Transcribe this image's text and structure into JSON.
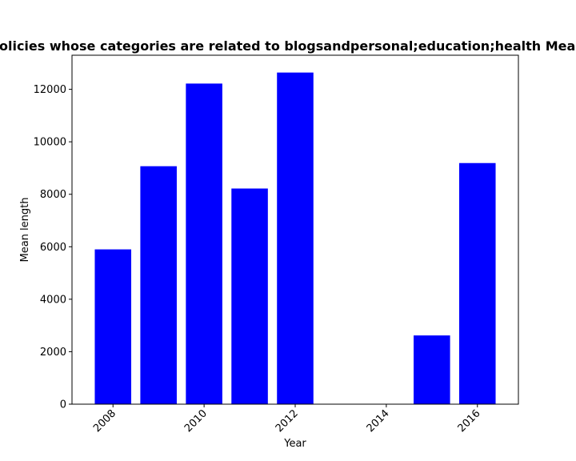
{
  "chart_data": {
    "type": "bar",
    "title": "Mean length in privacy policies whose categories are related to blogsandpersonal;education;health Mean length in privacy policies",
    "xlabel": "Year",
    "ylabel": "Mean length",
    "x": [
      2008,
      2009,
      2010,
      2011,
      2012,
      2015,
      2016
    ],
    "values": [
      5900,
      9070,
      12220,
      8220,
      12640,
      2620,
      9190
    ],
    "bar_color": "#0000ff",
    "xlim": [
      2007.1,
      2016.9
    ],
    "ylim": [
      0,
      13300
    ],
    "xticks": [
      "2008",
      "2010",
      "2012",
      "2014",
      "2016"
    ],
    "yticks": [
      "0",
      "2000",
      "4000",
      "6000",
      "8000",
      "10000",
      "12000"
    ],
    "grid": false,
    "legend": "none"
  }
}
